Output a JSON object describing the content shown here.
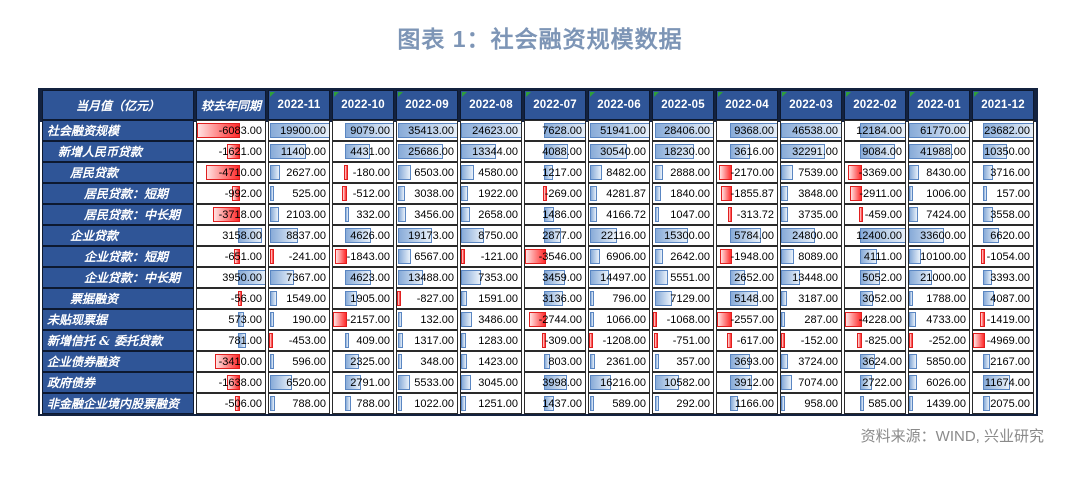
{
  "page": {
    "title": "图表 1：社会融资规模数据",
    "source_note": "资料来源：WIND, 兴业研究"
  },
  "colors": {
    "title": "#7d95b6",
    "header_bg": "#2f5597",
    "label_bg": "#2f5597",
    "outer_border": "#13223f",
    "bar_positive_fill": "#88abd8",
    "bar_positive_border": "#5a86c2",
    "bar_negative_fill": "#ff2b2b",
    "bar_negative_border": "#e01f1f",
    "corner_flag_green": "#2e9e3a",
    "source_text": "#8a8a8a"
  },
  "chart_data": {
    "type": "table",
    "title": "图表 1：社会融资规模数据",
    "unit_header": "当月值（亿元）",
    "columns": [
      "较去年同期",
      "2022-11",
      "2022-10",
      "2022-09",
      "2022-08",
      "2022-07",
      "2022-06",
      "2022-05",
      "2022-04",
      "2022-03",
      "2022-02",
      "2022-01",
      "2021-12"
    ],
    "rows": [
      {
        "label": "社会融资规模",
        "indent": 0,
        "values": [
          -6083,
          19900,
          9079,
          35413,
          24623,
          7628,
          51941,
          28406,
          9368,
          46538,
          12184,
          61770,
          23682
        ]
      },
      {
        "label": "新增人民币贷款",
        "indent": 1,
        "values": [
          -1621,
          11400,
          4431,
          25686,
          13344,
          4088,
          30540,
          18230,
          3616,
          32291,
          9084,
          41988,
          10350
        ]
      },
      {
        "label": "居民贷款",
        "indent": 2,
        "values": [
          -4710,
          2627,
          -180,
          6503,
          4580,
          1217,
          8482,
          2888,
          -2170,
          7539,
          -3369,
          8430,
          3716
        ]
      },
      {
        "label": "居民贷款：短期",
        "indent": 3,
        "values": [
          -992,
          525,
          -512,
          3038,
          1922,
          -269,
          4281.87,
          1840,
          -1855.87,
          3848,
          -2911,
          1006,
          157
        ]
      },
      {
        "label": "居民贷款：中长期",
        "indent": 3,
        "values": [
          -3718,
          2103,
          332,
          3456,
          2658,
          1486,
          4166.72,
          1047,
          -313.72,
          3735,
          -459,
          7424,
          3558
        ]
      },
      {
        "label": "企业贷款",
        "indent": 2,
        "values": [
          3158,
          8837,
          4626,
          19173,
          8750,
          2877,
          22116,
          15300,
          5784,
          24800,
          12400,
          33600,
          6620
        ]
      },
      {
        "label": "企业贷款：短期",
        "indent": 3,
        "values": [
          -651,
          -241,
          -1843,
          6567,
          -121,
          -3546,
          6906,
          2642,
          -1948,
          8089,
          4111,
          10100,
          -1054
        ]
      },
      {
        "label": "企业贷款：中长期",
        "indent": 3,
        "values": [
          3950,
          7367,
          4623,
          13488,
          7353,
          3459,
          14497,
          5551,
          2652,
          13448,
          5052,
          21000,
          3393
        ]
      },
      {
        "label": "票据融资",
        "indent": 2,
        "values": [
          -56,
          1549,
          1905,
          -827,
          1591,
          3136,
          796,
          7129,
          5148,
          3187,
          3052,
          1788,
          4087
        ]
      },
      {
        "label": "未贴现票据",
        "indent": 0,
        "values": [
          573,
          190,
          -2157,
          132,
          3486,
          -2744,
          1066,
          -1068,
          -2557,
          287,
          -4228,
          4733,
          -1419
        ]
      },
      {
        "label": "新增信托 & 委托贷款",
        "indent": 0,
        "values": [
          781,
          -453,
          409,
          1317,
          1283,
          -309,
          -1208,
          -751,
          -617,
          -152,
          -825,
          -252,
          -4969
        ]
      },
      {
        "label": "企业债券融资",
        "indent": 0,
        "values": [
          -3410,
          596,
          2325,
          348,
          1423,
          803,
          2361,
          357,
          3693,
          3724,
          3624,
          5850,
          2167
        ]
      },
      {
        "label": "政府债券",
        "indent": 0,
        "values": [
          -1638,
          6520,
          2791,
          5533,
          3045,
          3998,
          16216,
          10582,
          3912,
          7074,
          2722,
          6026,
          11674
        ]
      },
      {
        "label": "非金融企业境内股票融资",
        "indent": 0,
        "values": [
          -506,
          788,
          788,
          1022,
          1251,
          1437,
          589,
          292,
          1166,
          958,
          585,
          1439,
          2075
        ]
      }
    ],
    "value_format": "0.00",
    "bar_style": "excel-gradient-databar, per-column automatic axis, blue positive / red negative",
    "legend_position": "none",
    "grid": true
  }
}
